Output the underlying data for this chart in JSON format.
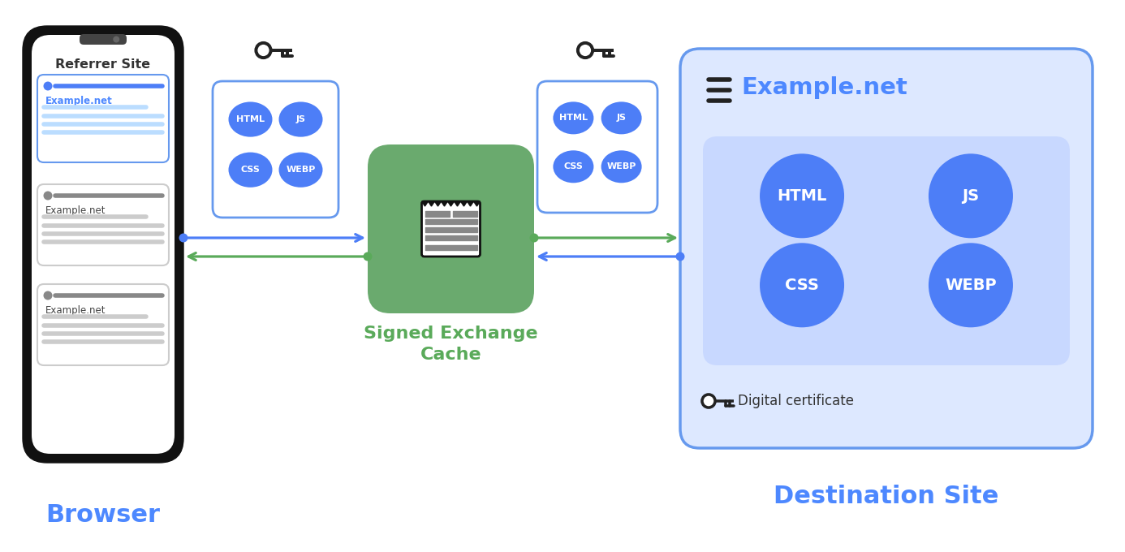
{
  "bg_color": "#ffffff",
  "blue_circle_color": "#4d7ef7",
  "blue_circle_text_color": "#ffffff",
  "green_box_color": "#6aaa6e",
  "blue_box_edge": "#6699ee",
  "light_blue_fill": "#dde8ff",
  "inner_blue_fill": "#c8d8ff",
  "arrow_blue": "#4d7ef7",
  "arrow_green": "#5aaa5a",
  "phone_black": "#111111",
  "phone_white": "#ffffff",
  "label_blue": "#4d88ff",
  "label_green": "#5aaa5a",
  "title_browser": "Browser",
  "title_cache": "Signed Exchange\nCache",
  "title_dest": "Destination Site",
  "referrer_text": "Referrer Site",
  "example_net": "Example.net",
  "digital_cert": "Digital certificate"
}
